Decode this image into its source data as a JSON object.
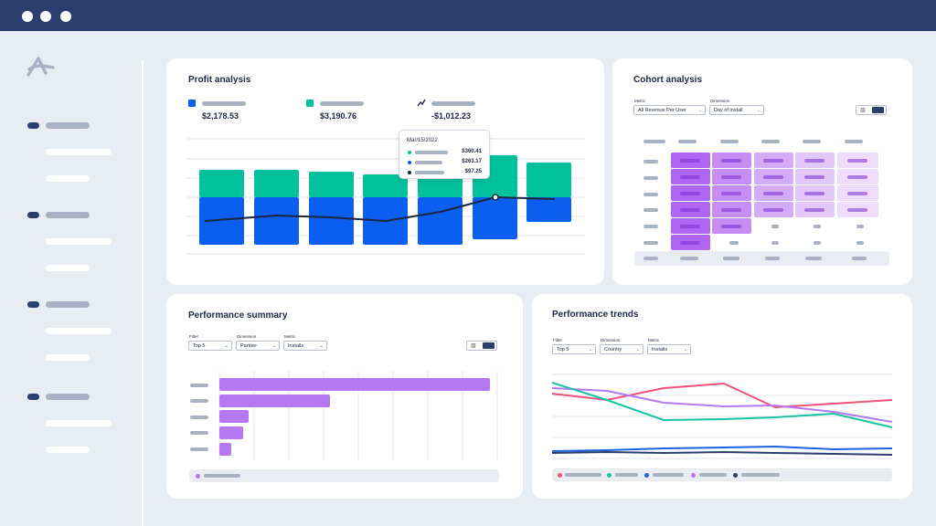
{
  "window": {
    "colors": {
      "titlebar": "#2a3f6e",
      "background": "#e8ecf3",
      "accent_blue": "#0a5ff0",
      "accent_green": "#00c19c",
      "accent_purple": "#b066f2"
    }
  },
  "sidebar": {
    "logo_icon": "brand-logo-icon",
    "groups": 4
  },
  "profit_analysis": {
    "title": "Profit analysis",
    "kpis": [
      {
        "icon": "blue-square-icon",
        "value": "$2,178.53"
      },
      {
        "icon": "green-square-icon",
        "value": "$3,190.76"
      },
      {
        "icon": "trend-line-icon",
        "value": "-$1,012.23"
      }
    ],
    "tooltip": {
      "date": "Mar/15/2022",
      "values": [
        "$360.41",
        "$263.17",
        "$97.25"
      ]
    }
  },
  "cohort_analysis": {
    "title": "Cohort analysis",
    "filters": [
      {
        "label": "Metric",
        "value": "All Revenue Per User"
      },
      {
        "label": "Dimension",
        "value": "Day of install"
      }
    ]
  },
  "performance_summary": {
    "title": "Performance summary",
    "filters": [
      {
        "label": "Filter",
        "value": "Top 5"
      },
      {
        "label": "Dimension",
        "value": "Partner"
      },
      {
        "label": "Metric",
        "value": "Installs"
      }
    ]
  },
  "performance_trends": {
    "title": "Performance trends",
    "filters": [
      {
        "label": "Filter",
        "value": "Top 5"
      },
      {
        "label": "Dimension",
        "value": "Country"
      },
      {
        "label": "Metric",
        "value": "Installs"
      }
    ],
    "legend_colors": [
      "#f0527a",
      "#16c4a4",
      "#1a63e0",
      "#b678f0",
      "#2a3f6e"
    ]
  }
}
